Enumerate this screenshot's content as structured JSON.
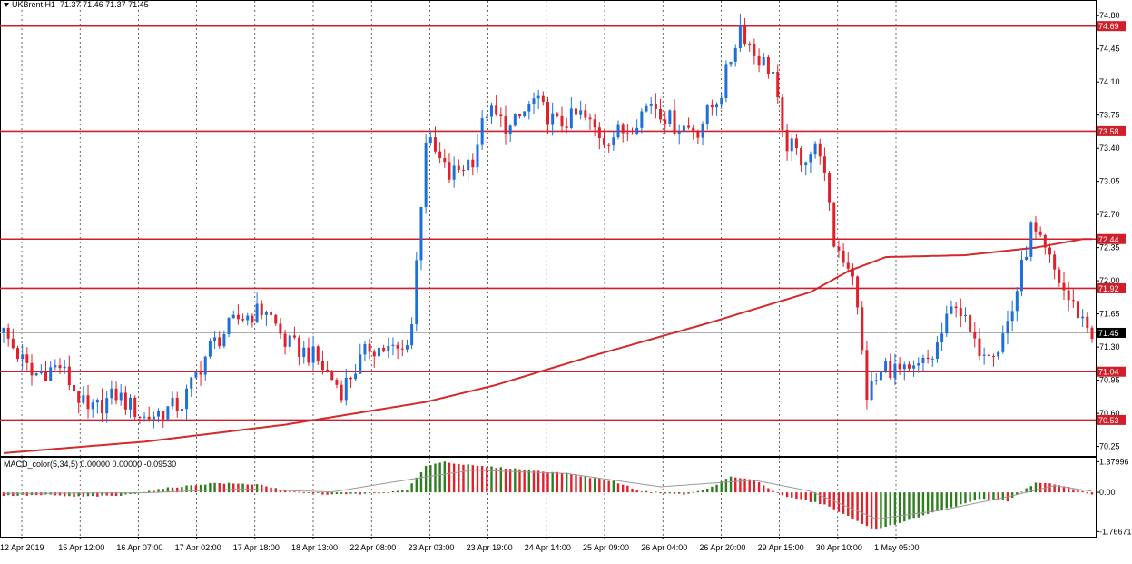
{
  "symbol_header": {
    "symbol": "UKBrent,H1",
    "ohlc": "71.37 71.46 71.37 71.45"
  },
  "macd_header": {
    "label": "MACD_color(5,34,5) 0.00000 0.00000 -0.09530"
  },
  "colors": {
    "bull": "#1e6fd9",
    "bear": "#e0202a",
    "hline": "#d01f2a",
    "ma": "#d42a2a",
    "macd_pos": "#2e7d1e",
    "macd_neg": "#e0202a",
    "grid": "#000000",
    "current_line": "#b0b0b0"
  },
  "chart_data": [
    {
      "type": "candlestick",
      "title": "UKBrent,H1",
      "ylim": [
        70.15,
        74.85
      ],
      "y_ticks": [
        "74.80",
        "74.45",
        "74.10",
        "73.75",
        "73.40",
        "73.05",
        "72.70",
        "72.35",
        "72.00",
        "71.65",
        "71.30",
        "70.95",
        "70.60",
        "70.25"
      ],
      "y_tick_values": [
        74.8,
        74.45,
        74.1,
        73.75,
        73.4,
        73.05,
        72.7,
        72.35,
        72.0,
        71.65,
        71.3,
        70.95,
        70.6,
        70.25
      ],
      "x_labels": [
        "12 Apr 2019",
        "15 Apr 12:00",
        "16 Apr 07:00",
        "17 Apr 02:00",
        "17 Apr 18:00",
        "18 Apr 13:00",
        "22 Apr 08:00",
        "23 Apr 03:00",
        "23 Apr 19:00",
        "24 Apr 14:00",
        "25 Apr 09:00",
        "26 Apr 04:00",
        "26 Apr 20:00",
        "29 Apr 15:00",
        "30 Apr 10:00",
        "1 May 05:00"
      ],
      "current_price": 71.45,
      "current_price_label": "71.45",
      "horizontal_levels": [
        {
          "value": 74.69,
          "label": "74.69"
        },
        {
          "value": 73.58,
          "label": "73.58"
        },
        {
          "value": 72.44,
          "label": "72.44"
        },
        {
          "value": 71.92,
          "label": "71.92"
        },
        {
          "value": 71.04,
          "label": "71.04"
        },
        {
          "value": 70.53,
          "label": "70.53"
        }
      ],
      "moving_average_anchors": [
        [
          0,
          70.18
        ],
        [
          30,
          70.3
        ],
        [
          60,
          70.48
        ],
        [
          90,
          70.72
        ],
        [
          105,
          70.9
        ],
        [
          125,
          71.2
        ],
        [
          150,
          71.55
        ],
        [
          172,
          71.88
        ],
        [
          180,
          72.1
        ],
        [
          188,
          72.25
        ],
        [
          205,
          72.27
        ],
        [
          220,
          72.35
        ],
        [
          230,
          72.44
        ]
      ],
      "price_anchors": [
        [
          0,
          71.45
        ],
        [
          6,
          71.0
        ],
        [
          12,
          71.1
        ],
        [
          18,
          70.6
        ],
        [
          24,
          70.8
        ],
        [
          30,
          70.55
        ],
        [
          38,
          70.7
        ],
        [
          44,
          71.3
        ],
        [
          50,
          71.6
        ],
        [
          56,
          71.7
        ],
        [
          60,
          71.35
        ],
        [
          66,
          71.2
        ],
        [
          72,
          70.85
        ],
        [
          78,
          71.3
        ],
        [
          85,
          71.25
        ],
        [
          87,
          71.55
        ],
        [
          90,
          73.5
        ],
        [
          95,
          73.1
        ],
        [
          100,
          73.3
        ],
        [
          103,
          73.8
        ],
        [
          108,
          73.6
        ],
        [
          113,
          73.9
        ],
        [
          118,
          73.65
        ],
        [
          123,
          73.75
        ],
        [
          128,
          73.5
        ],
        [
          133,
          73.6
        ],
        [
          138,
          73.9
        ],
        [
          143,
          73.65
        ],
        [
          148,
          73.6
        ],
        [
          153,
          74.0
        ],
        [
          157,
          74.7
        ],
        [
          160,
          74.4
        ],
        [
          164,
          74.2
        ],
        [
          166,
          73.5
        ],
        [
          170,
          73.3
        ],
        [
          174,
          73.4
        ],
        [
          177,
          72.4
        ],
        [
          181,
          72.1
        ],
        [
          184,
          70.8
        ],
        [
          188,
          71.1
        ],
        [
          193,
          71.0
        ],
        [
          198,
          71.2
        ],
        [
          203,
          71.8
        ],
        [
          207,
          71.3
        ],
        [
          212,
          71.3
        ],
        [
          215,
          71.7
        ],
        [
          219,
          72.55
        ],
        [
          223,
          72.2
        ],
        [
          227,
          71.8
        ],
        [
          230,
          71.6
        ],
        [
          232,
          71.45
        ]
      ]
    },
    {
      "type": "bar",
      "title": "MACD_color(5,34,5)",
      "y_ticks": [
        "1.37996",
        "0.00",
        "-1.76671"
      ],
      "y_tick_values": [
        1.37996,
        0.0,
        -1.76671
      ],
      "ylim": [
        -2.0,
        1.6
      ],
      "histogram_anchors": [
        [
          0,
          -0.15
        ],
        [
          10,
          -0.12
        ],
        [
          15,
          -0.2
        ],
        [
          25,
          -0.15
        ],
        [
          35,
          0.2
        ],
        [
          45,
          0.42
        ],
        [
          55,
          0.35
        ],
        [
          60,
          0.05
        ],
        [
          70,
          -0.1
        ],
        [
          80,
          -0.05
        ],
        [
          86,
          0.1
        ],
        [
          90,
          1.2
        ],
        [
          94,
          1.38
        ],
        [
          100,
          1.2
        ],
        [
          110,
          1.05
        ],
        [
          120,
          0.85
        ],
        [
          130,
          0.5
        ],
        [
          136,
          0.05
        ],
        [
          145,
          -0.1
        ],
        [
          150,
          0.15
        ],
        [
          155,
          0.7
        ],
        [
          160,
          0.55
        ],
        [
          166,
          -0.15
        ],
        [
          175,
          -0.55
        ],
        [
          182,
          -1.3
        ],
        [
          186,
          -1.7
        ],
        [
          192,
          -1.3
        ],
        [
          200,
          -0.8
        ],
        [
          208,
          -0.3
        ],
        [
          214,
          -0.4
        ],
        [
          220,
          0.45
        ],
        [
          226,
          0.3
        ],
        [
          232,
          -0.1
        ]
      ],
      "signal_anchors": [
        [
          0,
          -0.05
        ],
        [
          30,
          -0.02
        ],
        [
          50,
          0.15
        ],
        [
          70,
          0.02
        ],
        [
          90,
          0.7
        ],
        [
          100,
          1.0
        ],
        [
          120,
          0.85
        ],
        [
          140,
          0.25
        ],
        [
          160,
          0.55
        ],
        [
          172,
          0.05
        ],
        [
          186,
          -1.2
        ],
        [
          200,
          -0.8
        ],
        [
          214,
          -0.2
        ],
        [
          224,
          0.3
        ],
        [
          232,
          0.05
        ]
      ]
    }
  ]
}
